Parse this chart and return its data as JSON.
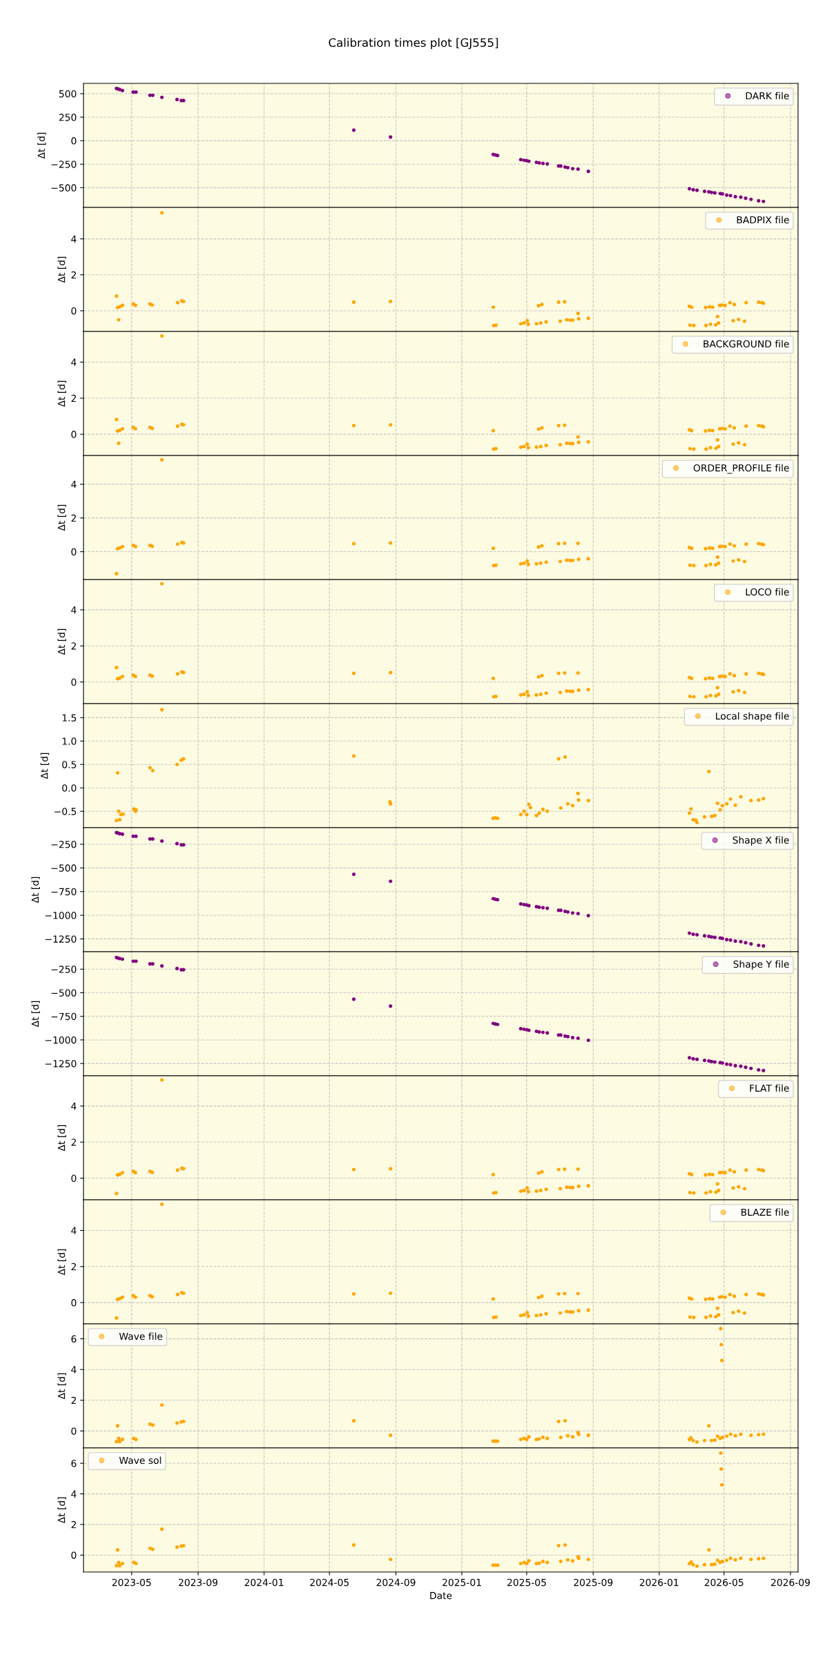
{
  "chart_data": [
    {
      "type": "scatter",
      "title": "Calibration times plot [GJ555]",
      "ylabel": "Δt [d]",
      "xlim": [
        "2023-02-01",
        "2026-09-15"
      ],
      "ylim": [
        -710,
        610
      ],
      "yticks": [
        -500,
        -250,
        0,
        250,
        500
      ],
      "grid": true,
      "legend": "top right",
      "marker": "circle",
      "tick_labels": "y",
      "series": [
        {
          "name": "DARK file",
          "color": "#800080",
          "x": [
            "2023-04-03",
            "2023-04-06",
            "2023-04-09",
            "2023-04-14",
            "2023-05-04",
            "2023-05-09",
            "2023-06-04",
            "2023-06-09",
            "2023-06-26",
            "2023-07-24",
            "2023-08-01",
            "2023-08-05",
            "2024-06-15",
            "2024-08-22",
            "2025-02-28",
            "2025-03-04",
            "2025-03-08",
            "2025-04-20",
            "2025-04-26",
            "2025-05-01",
            "2025-05-05",
            "2025-05-19",
            "2025-05-24",
            "2025-05-31",
            "2025-06-08",
            "2025-06-29",
            "2025-07-03",
            "2025-07-11",
            "2025-07-16",
            "2025-07-25",
            "2025-08-04",
            "2025-08-23",
            "2026-02-26",
            "2026-03-05",
            "2026-03-12",
            "2026-03-26",
            "2026-04-03",
            "2026-04-08",
            "2026-04-14",
            "2026-04-24",
            "2026-04-28",
            "2026-05-06",
            "2026-05-13",
            "2026-05-22",
            "2026-06-01",
            "2026-06-10",
            "2026-06-20",
            "2026-07-04",
            "2026-07-13"
          ],
          "values": [
            556,
            550,
            545,
            534,
            517,
            517,
            483,
            483,
            461,
            438,
            427,
            427,
            112,
            39,
            -146,
            -152,
            -157,
            -202,
            -208,
            -213,
            -219,
            -230,
            -236,
            -242,
            -247,
            -270,
            -270,
            -281,
            -287,
            -298,
            -303,
            -326,
            -511,
            -522,
            -528,
            -539,
            -545,
            -551,
            -556,
            -562,
            -567,
            -579,
            -584,
            -596,
            -601,
            -612,
            -624,
            -640,
            -646
          ]
        }
      ]
    },
    {
      "type": "scatter",
      "ylabel": "Δt [d]",
      "xlim": [
        "2023-02-01",
        "2026-09-15"
      ],
      "ylim": [
        -1.15,
        5.75
      ],
      "yticks": [
        0,
        2,
        4
      ],
      "grid": true,
      "legend": "top right",
      "marker": "circle",
      "tick_labels": "y",
      "series": [
        {
          "name": "BADPIX file",
          "color": "#ffa500",
          "x": [
            "2023-04-03",
            "2023-04-05",
            "2023-04-07",
            "2023-04-09",
            "2023-04-14",
            "2023-05-04",
            "2023-05-08",
            "2023-06-04",
            "2023-06-08",
            "2023-06-26",
            "2023-07-25",
            "2023-08-02",
            "2023-08-05",
            "2024-06-15",
            "2024-08-22",
            "2025-02-28",
            "2025-03-01",
            "2025-03-05",
            "2025-04-20",
            "2025-04-26",
            "2025-05-02",
            "2025-05-04",
            "2025-05-19",
            "2025-05-23",
            "2025-05-27",
            "2025-05-29",
            "2025-06-06",
            "2025-06-29",
            "2025-07-02",
            "2025-07-10",
            "2025-07-14",
            "2025-07-20",
            "2025-07-25",
            "2025-08-04",
            "2025-08-05",
            "2025-08-23",
            "2026-02-26",
            "2026-02-27",
            "2026-03-02",
            "2026-03-06",
            "2026-03-28",
            "2026-03-29",
            "2026-04-04",
            "2026-04-06",
            "2026-04-10",
            "2026-04-16",
            "2026-04-19",
            "2026-04-21",
            "2026-04-23",
            "2026-04-27",
            "2026-05-03",
            "2026-05-12",
            "2026-05-18",
            "2026-05-20",
            "2026-05-28",
            "2026-06-08",
            "2026-06-11",
            "2026-07-04",
            "2026-07-10",
            "2026-07-13"
          ],
          "values": [
            0.82,
            0.18,
            -0.5,
            0.22,
            0.3,
            0.38,
            0.3,
            0.38,
            0.32,
            5.45,
            0.45,
            0.55,
            0.52,
            0.48,
            0.52,
            0.2,
            -0.82,
            -0.8,
            -0.72,
            -0.68,
            -0.55,
            -0.75,
            -0.72,
            0.28,
            -0.68,
            0.35,
            -0.62,
            0.48,
            -0.58,
            0.5,
            -0.5,
            -0.52,
            -0.52,
            -0.15,
            -0.45,
            -0.42,
            0.25,
            -0.8,
            0.2,
            -0.82,
            0.18,
            -0.82,
            0.22,
            -0.75,
            0.2,
            -0.78,
            -0.32,
            -0.68,
            0.3,
            0.32,
            0.3,
            0.45,
            -0.55,
            0.35,
            -0.48,
            -0.58,
            0.45,
            0.48,
            0.45,
            0.42
          ]
        }
      ]
    },
    {
      "type": "scatter",
      "ylabel": "Δt [d]",
      "xlim": [
        "2023-02-01",
        "2026-09-15"
      ],
      "ylim": [
        -1.18,
        5.7
      ],
      "yticks": [
        0,
        2,
        4
      ],
      "grid": true,
      "legend": "top right",
      "marker": "circle",
      "tick_labels": "y",
      "series": [
        {
          "name": "BACKGROUND file",
          "color": "#ffa500",
          "x": [
            "2023-04-03",
            "2023-04-05",
            "2023-04-07",
            "2023-04-09",
            "2023-04-14",
            "2023-05-04",
            "2023-05-08",
            "2023-06-04",
            "2023-06-08",
            "2023-06-26",
            "2023-07-25",
            "2023-08-02",
            "2023-08-05",
            "2024-06-15",
            "2024-08-22",
            "2025-02-28",
            "2025-03-01",
            "2025-03-05",
            "2025-04-20",
            "2025-04-26",
            "2025-05-02",
            "2025-05-04",
            "2025-05-19",
            "2025-05-23",
            "2025-05-27",
            "2025-05-29",
            "2025-06-06",
            "2025-06-29",
            "2025-07-02",
            "2025-07-10",
            "2025-07-14",
            "2025-07-20",
            "2025-07-25",
            "2025-08-04",
            "2025-08-05",
            "2025-08-23",
            "2026-02-26",
            "2026-02-27",
            "2026-03-02",
            "2026-03-06",
            "2026-03-28",
            "2026-03-29",
            "2026-04-04",
            "2026-04-06",
            "2026-04-10",
            "2026-04-16",
            "2026-04-19",
            "2026-04-21",
            "2026-04-23",
            "2026-04-27",
            "2026-05-03",
            "2026-05-12",
            "2026-05-18",
            "2026-05-20",
            "2026-05-28",
            "2026-06-08",
            "2026-06-11",
            "2026-07-04",
            "2026-07-10",
            "2026-07-13"
          ],
          "values": [
            0.82,
            0.18,
            -0.5,
            0.22,
            0.3,
            0.38,
            0.3,
            0.38,
            0.32,
            5.45,
            0.45,
            0.55,
            0.52,
            0.48,
            0.52,
            0.2,
            -0.82,
            -0.8,
            -0.72,
            -0.68,
            -0.55,
            -0.75,
            -0.72,
            0.28,
            -0.68,
            0.35,
            -0.62,
            0.48,
            -0.58,
            0.5,
            -0.5,
            -0.52,
            -0.52,
            -0.15,
            -0.45,
            -0.42,
            0.25,
            -0.8,
            0.2,
            -0.82,
            0.18,
            -0.82,
            0.22,
            -0.75,
            0.2,
            -0.78,
            -0.32,
            -0.68,
            0.3,
            0.32,
            0.3,
            0.45,
            -0.55,
            0.35,
            -0.48,
            -0.58,
            0.45,
            0.48,
            0.45,
            0.42
          ]
        }
      ]
    },
    {
      "type": "scatter",
      "ylabel": "Δt [d]",
      "xlim": [
        "2023-02-01",
        "2026-09-15"
      ],
      "ylim": [
        -1.65,
        5.7
      ],
      "yticks": [
        0,
        2,
        4
      ],
      "grid": true,
      "legend": "top right",
      "marker": "circle",
      "tick_labels": "y",
      "series": [
        {
          "name": "ORDER_PROFILE file",
          "color": "#ffa500",
          "x": [
            "2023-04-03",
            "2023-04-05",
            "2023-04-09",
            "2023-04-14",
            "2023-05-04",
            "2023-05-08",
            "2023-06-04",
            "2023-06-08",
            "2023-06-26",
            "2023-07-25",
            "2023-08-02",
            "2023-08-05",
            "2024-06-15",
            "2024-08-22",
            "2025-02-28",
            "2025-03-01",
            "2025-03-05",
            "2025-04-20",
            "2025-04-26",
            "2025-05-02",
            "2025-05-04",
            "2025-05-19",
            "2025-05-23",
            "2025-05-27",
            "2025-05-29",
            "2025-06-06",
            "2025-06-29",
            "2025-07-02",
            "2025-07-10",
            "2025-07-14",
            "2025-07-20",
            "2025-07-25",
            "2025-08-04",
            "2025-08-05",
            "2025-08-23",
            "2026-02-26",
            "2026-02-27",
            "2026-03-02",
            "2026-03-06",
            "2026-03-28",
            "2026-03-29",
            "2026-04-04",
            "2026-04-06",
            "2026-04-10",
            "2026-04-16",
            "2026-04-19",
            "2026-04-21",
            "2026-04-23",
            "2026-04-27",
            "2026-05-03",
            "2026-05-12",
            "2026-05-18",
            "2026-05-20",
            "2026-05-28",
            "2026-06-08",
            "2026-06-11",
            "2026-07-04",
            "2026-07-10",
            "2026-07-13"
          ],
          "values": [
            -1.3,
            0.18,
            0.22,
            0.3,
            0.38,
            0.3,
            0.38,
            0.32,
            5.45,
            0.45,
            0.55,
            0.52,
            0.48,
            0.52,
            0.2,
            -0.82,
            -0.8,
            -0.72,
            -0.68,
            -0.55,
            -0.75,
            -0.72,
            0.28,
            -0.68,
            0.35,
            -0.62,
            0.48,
            -0.58,
            0.5,
            -0.5,
            -0.52,
            -0.52,
            0.5,
            -0.45,
            -0.42,
            0.25,
            -0.8,
            0.2,
            -0.82,
            0.18,
            -0.82,
            0.22,
            -0.75,
            0.2,
            -0.78,
            -0.32,
            -0.68,
            0.3,
            0.32,
            0.3,
            0.45,
            -0.55,
            0.35,
            -0.48,
            -0.58,
            0.45,
            0.48,
            0.45,
            0.42
          ]
        }
      ]
    },
    {
      "type": "scatter",
      "ylabel": "Δt [d]",
      "xlim": [
        "2023-02-01",
        "2026-09-15"
      ],
      "ylim": [
        -1.2,
        5.68
      ],
      "yticks": [
        0,
        2,
        4
      ],
      "grid": true,
      "legend": "top right",
      "marker": "circle",
      "tick_labels": "y",
      "series": [
        {
          "name": "LOCO file",
          "color": "#ffa500",
          "x": [
            "2023-04-03",
            "2023-04-05",
            "2023-04-09",
            "2023-04-14",
            "2023-05-04",
            "2023-05-08",
            "2023-06-04",
            "2023-06-08",
            "2023-06-26",
            "2023-07-25",
            "2023-08-02",
            "2023-08-05",
            "2024-06-15",
            "2024-08-22",
            "2025-02-28",
            "2025-03-01",
            "2025-03-05",
            "2025-04-20",
            "2025-04-26",
            "2025-05-02",
            "2025-05-04",
            "2025-05-19",
            "2025-05-23",
            "2025-05-27",
            "2025-05-29",
            "2025-06-06",
            "2025-06-29",
            "2025-07-02",
            "2025-07-10",
            "2025-07-14",
            "2025-07-20",
            "2025-07-25",
            "2025-08-04",
            "2025-08-05",
            "2025-08-23",
            "2026-02-26",
            "2026-02-27",
            "2026-03-02",
            "2026-03-06",
            "2026-03-28",
            "2026-03-29",
            "2026-04-04",
            "2026-04-06",
            "2026-04-10",
            "2026-04-16",
            "2026-04-19",
            "2026-04-21",
            "2026-04-23",
            "2026-04-27",
            "2026-05-03",
            "2026-05-12",
            "2026-05-18",
            "2026-05-20",
            "2026-05-28",
            "2026-06-08",
            "2026-06-11",
            "2026-07-04",
            "2026-07-10",
            "2026-07-13"
          ],
          "values": [
            0.8,
            0.18,
            0.22,
            0.3,
            0.38,
            0.3,
            0.38,
            0.32,
            5.45,
            0.45,
            0.55,
            0.52,
            0.48,
            0.52,
            0.2,
            -0.82,
            -0.8,
            -0.72,
            -0.68,
            -0.55,
            -0.75,
            -0.72,
            0.28,
            -0.68,
            0.35,
            -0.62,
            0.48,
            -0.58,
            0.5,
            -0.5,
            -0.52,
            -0.52,
            0.5,
            -0.45,
            -0.42,
            0.25,
            -0.8,
            0.2,
            -0.82,
            0.18,
            -0.82,
            0.22,
            -0.75,
            0.2,
            -0.78,
            -0.32,
            -0.68,
            0.3,
            0.32,
            0.3,
            0.45,
            -0.55,
            0.35,
            -0.48,
            -0.58,
            0.45,
            0.48,
            0.45,
            0.42
          ]
        }
      ]
    },
    {
      "type": "scatter",
      "ylabel": "Δt [d]",
      "xlim": [
        "2023-02-01",
        "2026-09-15"
      ],
      "ylim": [
        -0.85,
        1.8
      ],
      "yticks": [
        -0.5,
        {
          "value": 0,
          "label": "0.0"
        },
        0.5,
        {
          "value": 1,
          "label": "1.0"
        },
        1.5
      ],
      "grid": true,
      "legend": "top right",
      "marker": "circle",
      "tick_labels": "y",
      "series": [
        {
          "name": "Local shape file",
          "color": "#ffa500",
          "x": [
            "2023-04-03",
            "2023-04-05",
            "2023-04-07",
            "2023-04-09",
            "2023-04-11",
            "2023-04-15",
            "2023-05-05",
            "2023-05-08",
            "2023-05-09",
            "2023-06-04",
            "2023-06-09",
            "2023-06-26",
            "2023-07-24",
            "2023-08-01",
            "2023-08-05",
            "2024-06-15",
            "2024-08-21",
            "2024-08-22",
            "2025-02-28",
            "2025-03-04",
            "2025-03-08",
            "2025-04-20",
            "2025-04-26",
            "2025-05-01",
            "2025-05-05",
            "2025-05-08",
            "2025-05-19",
            "2025-05-24",
            "2025-05-31",
            "2025-06-08",
            "2025-06-29",
            "2025-07-03",
            "2025-07-11",
            "2025-07-16",
            "2025-07-25",
            "2025-08-04",
            "2025-08-05",
            "2025-08-23",
            "2026-02-26",
            "2026-03-01",
            "2026-03-05",
            "2026-03-10",
            "2026-03-12",
            "2026-03-26",
            "2026-04-03",
            "2026-04-08",
            "2026-04-14",
            "2026-04-19",
            "2026-04-24",
            "2026-04-28",
            "2026-05-06",
            "2026-05-13",
            "2026-05-22",
            "2026-06-01",
            "2026-06-20",
            "2026-07-04",
            "2026-07-13"
          ],
          "values": [
            -0.7,
            0.32,
            -0.5,
            -0.68,
            -0.57,
            -0.56,
            -0.45,
            -0.5,
            -0.47,
            0.43,
            0.37,
            1.67,
            0.5,
            0.59,
            0.62,
            0.68,
            -0.3,
            -0.34,
            -0.65,
            -0.64,
            -0.65,
            -0.57,
            -0.5,
            -0.57,
            -0.35,
            -0.42,
            -0.59,
            -0.54,
            -0.46,
            -0.5,
            0.62,
            -0.43,
            0.66,
            -0.34,
            -0.38,
            -0.12,
            -0.26,
            -0.27,
            -0.54,
            -0.45,
            -0.68,
            -0.69,
            -0.74,
            -0.62,
            0.35,
            -0.61,
            -0.59,
            -0.33,
            -0.47,
            -0.38,
            -0.34,
            -0.24,
            -0.37,
            -0.19,
            -0.27,
            -0.26,
            -0.23
          ]
        }
      ]
    },
    {
      "type": "scatter",
      "ylabel": "Δt [d]",
      "xlim": [
        "2023-02-01",
        "2026-09-15"
      ],
      "ylim": [
        -1385,
        -75
      ],
      "yticks": [
        -1250,
        -1000,
        -750,
        -500,
        -250
      ],
      "grid": true,
      "legend": "top right",
      "marker": "circle",
      "tick_labels": "y",
      "series": [
        {
          "name": "Shape X file",
          "color": "#800080",
          "x": [
            "2023-04-03",
            "2023-04-06",
            "2023-04-09",
            "2023-04-14",
            "2023-05-04",
            "2023-05-09",
            "2023-06-04",
            "2023-06-09",
            "2023-06-26",
            "2023-07-24",
            "2023-08-01",
            "2023-08-05",
            "2024-06-15",
            "2024-08-22",
            "2025-02-28",
            "2025-03-04",
            "2025-03-08",
            "2025-04-20",
            "2025-04-26",
            "2025-05-01",
            "2025-05-05",
            "2025-05-19",
            "2025-05-24",
            "2025-05-31",
            "2025-06-08",
            "2025-06-29",
            "2025-07-03",
            "2025-07-11",
            "2025-07-16",
            "2025-07-25",
            "2025-08-04",
            "2025-08-23",
            "2026-02-26",
            "2026-03-05",
            "2026-03-12",
            "2026-03-26",
            "2026-04-03",
            "2026-04-08",
            "2026-04-14",
            "2026-04-24",
            "2026-04-28",
            "2026-05-06",
            "2026-05-13",
            "2026-05-22",
            "2026-06-01",
            "2026-06-10",
            "2026-06-20",
            "2026-07-04",
            "2026-07-13"
          ],
          "values": [
            -127,
            -133,
            -138,
            -144,
            -166,
            -166,
            -194,
            -194,
            -216,
            -244,
            -256,
            -256,
            -568,
            -641,
            -825,
            -831,
            -836,
            -881,
            -887,
            -892,
            -898,
            -909,
            -915,
            -920,
            -926,
            -948,
            -948,
            -959,
            -965,
            -976,
            -982,
            -1004,
            -1189,
            -1200,
            -1206,
            -1217,
            -1223,
            -1229,
            -1234,
            -1240,
            -1245,
            -1257,
            -1262,
            -1274,
            -1279,
            -1290,
            -1302,
            -1318,
            -1324
          ]
        }
      ]
    },
    {
      "type": "scatter",
      "ylabel": "Δt [d]",
      "xlim": [
        "2023-02-01",
        "2026-09-15"
      ],
      "ylim": [
        -1380,
        -65
      ],
      "yticks": [
        -1250,
        -1000,
        -750,
        -500,
        -250
      ],
      "grid": true,
      "legend": "top right",
      "marker": "circle",
      "tick_labels": "y",
      "series": [
        {
          "name": "Shape Y file",
          "color": "#800080",
          "x": [
            "2023-04-03",
            "2023-04-06",
            "2023-04-09",
            "2023-04-14",
            "2023-05-04",
            "2023-05-09",
            "2023-06-04",
            "2023-06-09",
            "2023-06-26",
            "2023-07-24",
            "2023-08-01",
            "2023-08-05",
            "2024-06-15",
            "2024-08-22",
            "2025-02-28",
            "2025-03-04",
            "2025-03-08",
            "2025-04-20",
            "2025-04-26",
            "2025-05-01",
            "2025-05-05",
            "2025-05-19",
            "2025-05-24",
            "2025-05-31",
            "2025-06-08",
            "2025-06-29",
            "2025-07-03",
            "2025-07-11",
            "2025-07-16",
            "2025-07-25",
            "2025-08-04",
            "2025-08-23",
            "2026-02-26",
            "2026-03-05",
            "2026-03-12",
            "2026-03-26",
            "2026-04-03",
            "2026-04-08",
            "2026-04-14",
            "2026-04-24",
            "2026-04-28",
            "2026-05-06",
            "2026-05-13",
            "2026-05-22",
            "2026-06-01",
            "2026-06-10",
            "2026-06-20",
            "2026-07-04",
            "2026-07-13"
          ],
          "values": [
            -127,
            -133,
            -138,
            -144,
            -166,
            -166,
            -194,
            -194,
            -216,
            -244,
            -256,
            -256,
            -568,
            -641,
            -825,
            -831,
            -836,
            -881,
            -887,
            -892,
            -898,
            -909,
            -915,
            -920,
            -926,
            -948,
            -948,
            -959,
            -965,
            -976,
            -982,
            -1004,
            -1189,
            -1200,
            -1206,
            -1217,
            -1223,
            -1229,
            -1234,
            -1240,
            -1245,
            -1257,
            -1262,
            -1274,
            -1279,
            -1290,
            -1302,
            -1318,
            -1324
          ]
        }
      ]
    },
    {
      "type": "scatter",
      "ylabel": "Δt [d]",
      "xlim": [
        "2023-02-01",
        "2026-09-15"
      ],
      "ylim": [
        -1.2,
        5.68
      ],
      "yticks": [
        0,
        2,
        4
      ],
      "grid": true,
      "legend": "top right",
      "marker": "circle",
      "tick_labels": "y",
      "series": [
        {
          "name": "FLAT file",
          "color": "#ffa500",
          "x": [
            "2023-04-03",
            "2023-04-05",
            "2023-04-09",
            "2023-04-14",
            "2023-05-04",
            "2023-05-08",
            "2023-06-04",
            "2023-06-08",
            "2023-06-26",
            "2023-07-25",
            "2023-08-02",
            "2023-08-05",
            "2024-06-15",
            "2024-08-22",
            "2025-02-28",
            "2025-03-01",
            "2025-03-05",
            "2025-04-20",
            "2025-04-26",
            "2025-05-02",
            "2025-05-04",
            "2025-05-19",
            "2025-05-23",
            "2025-05-27",
            "2025-05-29",
            "2025-06-06",
            "2025-06-29",
            "2025-07-02",
            "2025-07-10",
            "2025-07-14",
            "2025-07-20",
            "2025-07-25",
            "2025-08-04",
            "2025-08-05",
            "2025-08-23",
            "2026-02-26",
            "2026-02-27",
            "2026-03-02",
            "2026-03-06",
            "2026-03-28",
            "2026-03-29",
            "2026-04-04",
            "2026-04-06",
            "2026-04-10",
            "2026-04-16",
            "2026-04-19",
            "2026-04-21",
            "2026-04-23",
            "2026-04-27",
            "2026-05-03",
            "2026-05-12",
            "2026-05-18",
            "2026-05-20",
            "2026-05-28",
            "2026-06-08",
            "2026-06-11",
            "2026-07-04",
            "2026-07-10",
            "2026-07-13"
          ],
          "values": [
            -0.85,
            0.18,
            0.22,
            0.3,
            0.38,
            0.3,
            0.38,
            0.32,
            5.45,
            0.45,
            0.55,
            0.52,
            0.48,
            0.52,
            0.2,
            -0.82,
            -0.8,
            -0.72,
            -0.68,
            -0.55,
            -0.75,
            -0.72,
            0.28,
            -0.68,
            0.35,
            -0.62,
            0.48,
            -0.58,
            0.5,
            -0.5,
            -0.52,
            -0.52,
            0.5,
            -0.45,
            -0.42,
            0.25,
            -0.8,
            0.2,
            -0.82,
            0.18,
            -0.82,
            0.22,
            -0.75,
            0.2,
            -0.78,
            -0.32,
            -0.68,
            0.3,
            0.32,
            0.3,
            0.45,
            -0.55,
            0.35,
            -0.48,
            -0.58,
            0.45,
            0.48,
            0.45,
            0.42
          ]
        }
      ]
    },
    {
      "type": "scatter",
      "ylabel": "Δt [d]",
      "xlim": [
        "2023-02-01",
        "2026-09-15"
      ],
      "ylim": [
        -1.18,
        5.7
      ],
      "yticks": [
        0,
        2,
        4
      ],
      "grid": true,
      "legend": "top right",
      "marker": "circle",
      "tick_labels": "y",
      "series": [
        {
          "name": "BLAZE file",
          "color": "#ffa500",
          "x": [
            "2023-04-03",
            "2023-04-05",
            "2023-04-09",
            "2023-04-14",
            "2023-05-04",
            "2023-05-08",
            "2023-06-04",
            "2023-06-08",
            "2023-06-26",
            "2023-07-25",
            "2023-08-02",
            "2023-08-05",
            "2024-06-15",
            "2024-08-22",
            "2025-02-28",
            "2025-03-01",
            "2025-03-05",
            "2025-04-20",
            "2025-04-26",
            "2025-05-02",
            "2025-05-04",
            "2025-05-19",
            "2025-05-23",
            "2025-05-27",
            "2025-05-29",
            "2025-06-06",
            "2025-06-29",
            "2025-07-02",
            "2025-07-10",
            "2025-07-14",
            "2025-07-20",
            "2025-07-25",
            "2025-08-04",
            "2025-08-05",
            "2025-08-23",
            "2026-02-26",
            "2026-02-27",
            "2026-03-02",
            "2026-03-06",
            "2026-03-28",
            "2026-03-29",
            "2026-04-04",
            "2026-04-06",
            "2026-04-10",
            "2026-04-16",
            "2026-04-19",
            "2026-04-21",
            "2026-04-23",
            "2026-04-27",
            "2026-05-03",
            "2026-05-12",
            "2026-05-18",
            "2026-05-20",
            "2026-05-28",
            "2026-06-08",
            "2026-06-11",
            "2026-07-04",
            "2026-07-10",
            "2026-07-13"
          ],
          "values": [
            -0.85,
            0.18,
            0.22,
            0.3,
            0.38,
            0.3,
            0.38,
            0.32,
            5.45,
            0.45,
            0.55,
            0.52,
            0.48,
            0.52,
            0.2,
            -0.82,
            -0.8,
            -0.72,
            -0.68,
            -0.55,
            -0.75,
            -0.72,
            0.28,
            -0.68,
            0.35,
            -0.62,
            0.48,
            -0.58,
            0.5,
            -0.5,
            -0.52,
            -0.52,
            0.5,
            -0.45,
            -0.42,
            0.25,
            -0.8,
            0.2,
            -0.82,
            0.18,
            -0.82,
            0.22,
            -0.75,
            0.2,
            -0.78,
            -0.32,
            -0.68,
            0.3,
            0.32,
            0.3,
            0.45,
            -0.55,
            0.35,
            -0.48,
            -0.58,
            0.45,
            0.48,
            0.45,
            0.42
          ]
        }
      ]
    },
    {
      "type": "scatter",
      "ylabel": "Δt [d]",
      "xlim": [
        "2023-02-01",
        "2026-09-15"
      ],
      "ylim": [
        -1.1,
        6.97
      ],
      "yticks": [
        0,
        2,
        4,
        6
      ],
      "grid": true,
      "legend": "top left",
      "marker": "circle",
      "tick_labels": "y",
      "series": [
        {
          "name": "Wave file",
          "color": "#ffa500",
          "x": [
            "2023-04-03",
            "2023-04-05",
            "2023-04-07",
            "2023-04-09",
            "2023-04-14",
            "2023-05-05",
            "2023-05-09",
            "2023-06-04",
            "2023-06-09",
            "2023-06-26",
            "2023-07-24",
            "2023-08-01",
            "2023-08-05",
            "2024-06-15",
            "2024-08-22",
            "2025-02-28",
            "2025-03-04",
            "2025-03-08",
            "2025-04-20",
            "2025-04-26",
            "2025-05-01",
            "2025-05-05",
            "2025-05-19",
            "2025-05-24",
            "2025-05-31",
            "2025-06-08",
            "2025-06-29",
            "2025-07-03",
            "2025-07-11",
            "2025-07-16",
            "2025-07-25",
            "2025-08-04",
            "2025-08-05",
            "2025-08-23",
            "2026-02-26",
            "2026-03-01",
            "2026-03-05",
            "2026-03-12",
            "2026-03-26",
            "2026-04-03",
            "2026-04-08",
            "2026-04-14",
            "2026-04-19",
            "2026-04-24",
            "2026-04-25",
            "2026-04-26",
            "2026-04-27",
            "2026-04-28",
            "2026-05-06",
            "2026-05-13",
            "2026-05-22",
            "2026-06-01",
            "2026-06-20",
            "2026-07-04",
            "2026-07-13"
          ],
          "values": [
            -0.69,
            0.34,
            -0.48,
            -0.69,
            -0.55,
            -0.48,
            -0.55,
            0.45,
            0.38,
            1.69,
            0.52,
            0.59,
            0.62,
            0.66,
            -0.28,
            -0.66,
            -0.66,
            -0.66,
            -0.55,
            -0.48,
            -0.55,
            -0.38,
            -0.55,
            -0.52,
            -0.41,
            -0.48,
            0.62,
            -0.41,
            0.66,
            -0.31,
            -0.38,
            -0.1,
            -0.21,
            -0.28,
            -0.55,
            -0.45,
            -0.62,
            -0.72,
            -0.62,
            0.34,
            -0.62,
            -0.59,
            -0.34,
            -0.48,
            6.66,
            5.62,
            4.59,
            -0.41,
            -0.34,
            -0.21,
            -0.31,
            -0.21,
            -0.28,
            -0.24,
            -0.21
          ]
        }
      ]
    },
    {
      "type": "scatter",
      "xlabel": "Date",
      "ylabel": "Δt [d]",
      "xlim": [
        "2023-02-01",
        "2026-09-15"
      ],
      "xticks": [
        {
          "value": "2023-05",
          "label": "2023-05"
        },
        {
          "value": "2023-09",
          "label": "2023-09"
        },
        {
          "value": "2024-01",
          "label": "2024-01"
        },
        {
          "value": "2024-05",
          "label": "2024-05"
        },
        {
          "value": "2024-09",
          "label": "2024-09"
        },
        {
          "value": "2025-01",
          "label": "2025-01"
        },
        {
          "value": "2025-05",
          "label": "2025-05"
        },
        {
          "value": "2025-09",
          "label": "2025-09"
        },
        {
          "value": "2026-01",
          "label": "2026-01"
        },
        {
          "value": "2026-05",
          "label": "2026-05"
        },
        {
          "value": "2026-09",
          "label": "2026-09"
        }
      ],
      "ylim": [
        -1.1,
        7.0
      ],
      "yticks": [
        0,
        2,
        4,
        6
      ],
      "grid": true,
      "legend": "top left",
      "marker": "circle",
      "series": [
        {
          "name": "Wave sol",
          "color": "#ffa500",
          "x": [
            "2023-04-03",
            "2023-04-05",
            "2023-04-07",
            "2023-04-09",
            "2023-04-14",
            "2023-05-05",
            "2023-05-09",
            "2023-06-04",
            "2023-06-09",
            "2023-06-26",
            "2023-07-24",
            "2023-08-01",
            "2023-08-05",
            "2024-06-15",
            "2024-08-22",
            "2025-02-28",
            "2025-03-04",
            "2025-03-08",
            "2025-04-20",
            "2025-04-26",
            "2025-05-01",
            "2025-05-05",
            "2025-05-19",
            "2025-05-24",
            "2025-05-31",
            "2025-06-08",
            "2025-06-29",
            "2025-07-03",
            "2025-07-11",
            "2025-07-16",
            "2025-07-25",
            "2025-08-04",
            "2025-08-05",
            "2025-08-23",
            "2026-02-26",
            "2026-03-01",
            "2026-03-05",
            "2026-03-12",
            "2026-03-26",
            "2026-04-03",
            "2026-04-08",
            "2026-04-14",
            "2026-04-19",
            "2026-04-24",
            "2026-04-25",
            "2026-04-26",
            "2026-04-27",
            "2026-04-28",
            "2026-05-06",
            "2026-05-13",
            "2026-05-22",
            "2026-06-01",
            "2026-06-20",
            "2026-07-04",
            "2026-07-13"
          ],
          "values": [
            -0.69,
            0.34,
            -0.48,
            -0.69,
            -0.55,
            -0.48,
            -0.55,
            0.45,
            0.38,
            1.69,
            0.52,
            0.59,
            0.62,
            0.66,
            -0.28,
            -0.66,
            -0.66,
            -0.66,
            -0.55,
            -0.48,
            -0.55,
            -0.38,
            -0.55,
            -0.52,
            -0.41,
            -0.48,
            0.62,
            -0.41,
            0.66,
            -0.31,
            -0.38,
            -0.1,
            -0.21,
            -0.28,
            -0.55,
            -0.45,
            -0.62,
            -0.72,
            -0.62,
            0.34,
            -0.62,
            -0.59,
            -0.34,
            -0.48,
            6.66,
            5.62,
            4.59,
            -0.41,
            -0.34,
            -0.21,
            -0.31,
            -0.21,
            -0.28,
            -0.24,
            -0.21
          ]
        }
      ]
    }
  ]
}
